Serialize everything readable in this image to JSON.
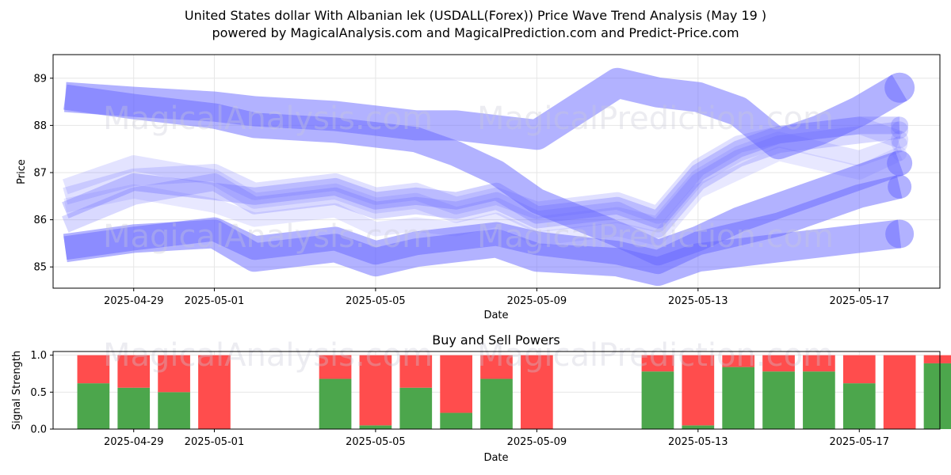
{
  "header": {
    "title_line1": "United States dollar With Albanian lek (USDALL(Forex)) Price Wave Trend Analysis (May 19 )",
    "title_line2": "powered by MagicalAnalysis.com and MagicalPrediction.com and Predict-Price.com"
  },
  "watermarks": [
    "MagicalAnalysis.com",
    "MagicalPrediction.com"
  ],
  "chart_data": [
    {
      "type": "line",
      "title": "",
      "xlabel": "Date",
      "ylabel": "Price",
      "x_ticks": [
        "2025-04-29",
        "2025-05-01",
        "2025-05-05",
        "2025-05-09",
        "2025-05-13",
        "2025-05-17"
      ],
      "y_ticks": [
        85,
        86,
        87,
        88,
        89
      ],
      "xlim": [
        "2025-04-27",
        "2025-05-19"
      ],
      "ylim": [
        84.55,
        89.5
      ],
      "grid": true,
      "x": [
        "2025-04-27.3",
        "2025-04-29",
        "2025-05-01",
        "2025-05-02",
        "2025-05-04",
        "2025-05-05",
        "2025-05-06",
        "2025-05-07",
        "2025-05-08",
        "2025-05-09",
        "2025-05-11",
        "2025-05-12",
        "2025-05-13",
        "2025-05-14",
        "2025-05-15",
        "2025-05-16",
        "2025-05-17",
        "2025-05-18"
      ],
      "series": [
        {
          "color": "#6666ff",
          "width": 32,
          "opacity": 0.5,
          "values": [
            88.6,
            88.4,
            88.2,
            88.0,
            87.9,
            87.8,
            87.7,
            87.4,
            87.0,
            86.4,
            85.7,
            85.3,
            85.6,
            86.0,
            86.3,
            86.6,
            86.9,
            87.2
          ]
        },
        {
          "color": "#6666ff",
          "width": 38,
          "opacity": 0.5,
          "values": [
            88.6,
            88.5,
            88.4,
            88.3,
            88.2,
            88.1,
            88.0,
            88.0,
            87.9,
            87.8,
            88.9,
            88.7,
            88.6,
            88.3,
            87.6,
            87.9,
            88.3,
            88.8
          ]
        },
        {
          "color": "#6666ff",
          "width": 30,
          "opacity": 0.5,
          "values": [
            85.4,
            85.6,
            85.8,
            85.4,
            85.6,
            85.3,
            85.5,
            85.6,
            85.7,
            85.5,
            85.3,
            85.1,
            85.5,
            85.7,
            85.9,
            86.2,
            86.5,
            86.7
          ]
        },
        {
          "color": "#6666ff",
          "width": 36,
          "opacity": 0.5,
          "values": [
            85.4,
            85.6,
            85.7,
            85.2,
            85.4,
            85.1,
            85.3,
            85.4,
            85.5,
            85.2,
            85.1,
            84.9,
            85.2,
            85.3,
            85.4,
            85.5,
            85.6,
            85.7
          ]
        },
        {
          "color": "#6666ff",
          "width": 22,
          "opacity": 0.3,
          "values": [
            86.2,
            86.8,
            86.6,
            86.5,
            86.7,
            86.4,
            86.5,
            86.4,
            86.6,
            86.1,
            86.3,
            86.0,
            87.0,
            87.5,
            87.8,
            87.9,
            88.0,
            88.0
          ]
        },
        {
          "color": "#6666ff",
          "width": 22,
          "opacity": 0.25,
          "values": [
            85.9,
            86.5,
            86.8,
            86.3,
            86.5,
            86.2,
            86.3,
            86.2,
            86.4,
            86.0,
            86.2,
            85.8,
            86.8,
            87.3,
            87.6,
            87.7,
            87.8,
            87.9
          ]
        },
        {
          "color": "#6666ff",
          "width": 22,
          "opacity": 0.2,
          "values": [
            86.5,
            86.9,
            87.0,
            86.6,
            86.8,
            86.5,
            86.6,
            86.3,
            86.5,
            86.2,
            86.4,
            86.1,
            87.1,
            87.6,
            87.8,
            87.9,
            88.0,
            87.7
          ]
        },
        {
          "color": "#6666ff",
          "width": 20,
          "opacity": 0.18,
          "values": [
            86.7,
            87.2,
            86.9,
            86.4,
            86.6,
            86.3,
            86.4,
            86.1,
            86.3,
            85.9,
            86.1,
            85.9,
            86.9,
            87.4,
            87.7,
            87.5,
            87.3,
            87.6
          ]
        },
        {
          "color": "#6666ff",
          "width": 18,
          "opacity": 0.15,
          "values": [
            86.3,
            86.6,
            86.3,
            86.0,
            86.2,
            85.8,
            85.9,
            85.8,
            86.0,
            85.6,
            85.8,
            85.6,
            86.6,
            87.0,
            87.4,
            87.2,
            87.0,
            87.4
          ]
        }
      ]
    },
    {
      "type": "bar",
      "title": "Buy and Sell Powers",
      "xlabel": "Date",
      "ylabel": "Signal Strength",
      "ylim": [
        0,
        1.05
      ],
      "y_ticks": [
        "0.0",
        "0.5",
        "1.0"
      ],
      "x_ticks": [
        "2025-04-29",
        "2025-05-01",
        "2025-05-05",
        "2025-05-09",
        "2025-05-13",
        "2025-05-17"
      ],
      "xlim": [
        "2025-04-27",
        "2025-05-19"
      ],
      "grid": true,
      "colors": {
        "buy": "#4ca64c",
        "sell": "#ff4d4d"
      },
      "categories": [
        "2025-04-28",
        "2025-04-29",
        "2025-04-30",
        "2025-05-01",
        "2025-05-04",
        "2025-05-05",
        "2025-05-06",
        "2025-05-07",
        "2025-05-08",
        "2025-05-09",
        "2025-05-12",
        "2025-05-13",
        "2025-05-14",
        "2025-05-15",
        "2025-05-16",
        "2025-05-17",
        "2025-05-18",
        "2025-05-19"
      ],
      "buy": [
        0.62,
        0.56,
        0.5,
        0.0,
        0.68,
        0.05,
        0.56,
        0.22,
        0.68,
        0.0,
        0.78,
        0.05,
        0.84,
        0.78,
        0.78,
        0.62,
        0.0,
        0.89
      ],
      "sell": [
        0.38,
        0.44,
        0.5,
        1.0,
        0.32,
        0.95,
        0.44,
        0.78,
        0.32,
        1.0,
        0.22,
        0.95,
        0.16,
        0.22,
        0.22,
        0.38,
        1.0,
        0.11
      ]
    }
  ]
}
